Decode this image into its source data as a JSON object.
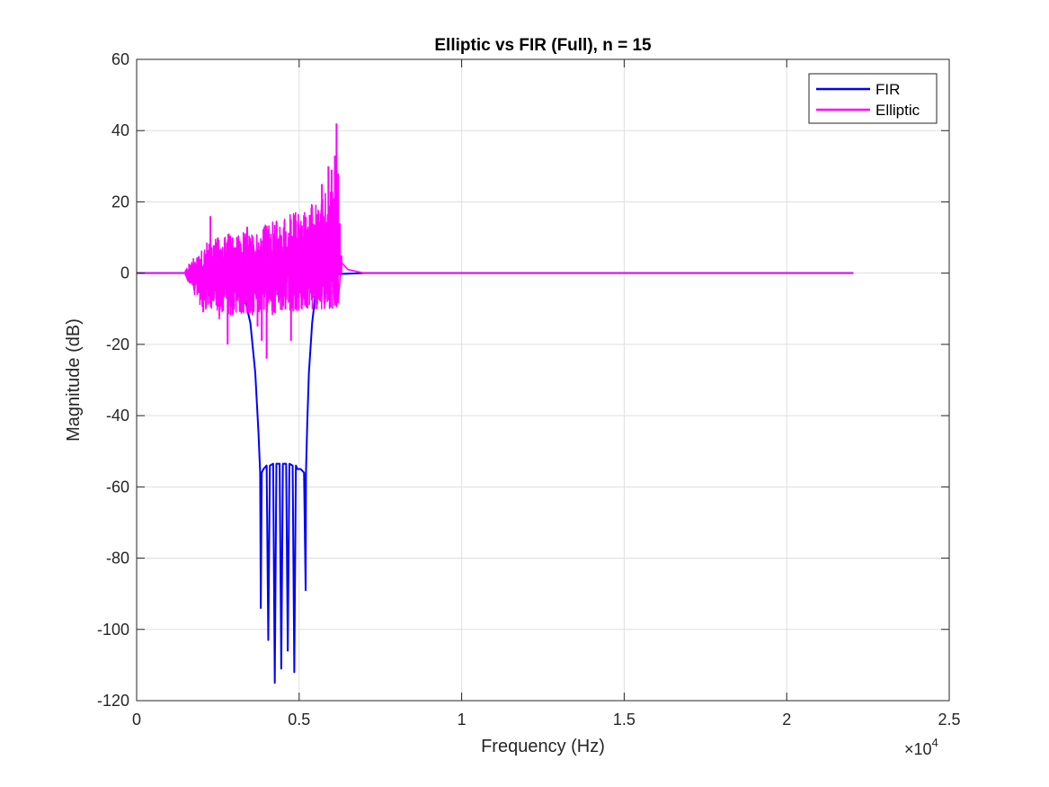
{
  "chart_data": {
    "type": "line",
    "title": "Elliptic vs FIR (Full), n = 15",
    "xlabel": "Frequency (Hz)",
    "ylabel": "Magnitude (dB)",
    "xlim": [
      0,
      25000
    ],
    "ylim": [
      -120,
      60
    ],
    "x_ticks": [
      0,
      5000,
      10000,
      15000,
      20000,
      25000
    ],
    "x_tick_labels": [
      "0",
      "0.5",
      "1",
      "1.5",
      "2",
      "2.5"
    ],
    "x_exponent_base": "×10",
    "x_exponent_power": "4",
    "y_ticks": [
      -120,
      -100,
      -80,
      -60,
      -40,
      -20,
      0,
      20,
      40,
      60
    ],
    "y_tick_labels": [
      "-120",
      "-100",
      "-80",
      "-60",
      "-40",
      "-20",
      "0",
      "20",
      "40",
      "60"
    ],
    "grid": true,
    "legend_position": "top-right",
    "series": [
      {
        "name": "FIR",
        "color": "#0000ff",
        "x": [
          0,
          1500,
          2500,
          3000,
          3300,
          3500,
          3650,
          3750,
          3800,
          3820,
          3850,
          3900,
          4000,
          4050,
          4100,
          4200,
          4250,
          4300,
          4400,
          4450,
          4500,
          4600,
          4650,
          4700,
          4800,
          4850,
          4900,
          4950,
          5000,
          5050,
          5150,
          5200,
          5210,
          5250,
          5300,
          5400,
          5500,
          5700,
          6000,
          7000,
          22050
        ],
        "y": [
          0,
          0,
          -0.3,
          -2,
          -6,
          -14,
          -28,
          -45,
          -56,
          -94,
          -56,
          -55,
          -54,
          -103,
          -54,
          -53.5,
          -115,
          -53.5,
          -53.5,
          -111,
          -53.5,
          -53.5,
          -106,
          -53.5,
          -54,
          -112,
          -54,
          -55,
          -55,
          -55,
          -56,
          -89,
          -56,
          -42,
          -28,
          -14,
          -6,
          -1.5,
          -0.3,
          0,
          0
        ]
      },
      {
        "name": "Elliptic",
        "color": "#ff00ff",
        "passband_end_hz": 1500,
        "noise_start_hz": 1500,
        "noise_end_hz": 6200,
        "noise_envelope_x": [
          1500,
          2000,
          2500,
          3000,
          3500,
          4000,
          4500,
          5000,
          5500,
          6000,
          6200
        ],
        "noise_envelope_y_max": [
          1,
          8,
          10,
          12,
          11,
          14,
          16,
          18,
          20,
          24,
          30
        ],
        "noise_envelope_y_min": [
          -1,
          -10,
          -13,
          -12,
          -12,
          -12,
          -11,
          -11,
          -10,
          -10,
          -10
        ],
        "spikes_x": [
          2050,
          2270,
          2800,
          2950,
          3400,
          3720,
          3850,
          4000,
          4750,
          5700,
          5900,
          6000,
          6050,
          6100,
          6150,
          6200,
          6250,
          6300
        ],
        "spikes_y": [
          -11,
          16,
          -20,
          10,
          13,
          -15,
          -19,
          -24,
          -19,
          25,
          30,
          29,
          21,
          33,
          42,
          28,
          14,
          5
        ],
        "tail_x": [
          6300,
          6500,
          7000,
          22050
        ],
        "tail_y": [
          3,
          1,
          0,
          0
        ]
      }
    ]
  }
}
